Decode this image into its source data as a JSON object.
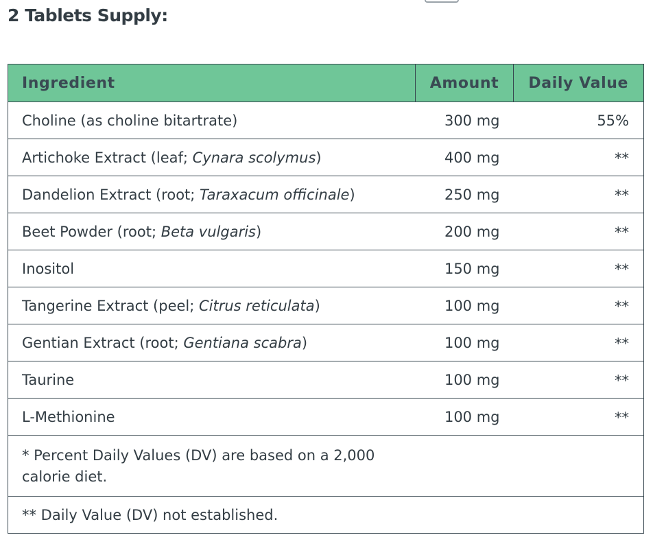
{
  "heading": "2 Tablets Supply:",
  "table": {
    "headers": {
      "ingredient": "Ingredient",
      "amount": "Amount",
      "daily_value": "Daily Value"
    },
    "rows": [
      {
        "name": "Choline (as choline bitartrate)",
        "latin": "",
        "suffix": "",
        "amount": "300 mg",
        "dv": "55%"
      },
      {
        "name": "Artichoke Extract (leaf; ",
        "latin": "Cynara scolymus",
        "suffix": ")",
        "amount": "400 mg",
        "dv": "**"
      },
      {
        "name": "Dandelion Extract (root; ",
        "latin": "Taraxacum officinale",
        "suffix": ")",
        "amount": "250 mg",
        "dv": "**"
      },
      {
        "name": "Beet Powder (root; ",
        "latin": "Beta vulgaris",
        "suffix": ")",
        "amount": "200 mg",
        "dv": "**"
      },
      {
        "name": "Inositol",
        "latin": "",
        "suffix": "",
        "amount": "150 mg",
        "dv": "**"
      },
      {
        "name": "Tangerine Extract (peel; ",
        "latin": "Citrus reticulata",
        "suffix": ")",
        "amount": "100 mg",
        "dv": "**"
      },
      {
        "name": "Gentian Extract (root; ",
        "latin": "Gentiana scabra",
        "suffix": ")",
        "amount": "100 mg",
        "dv": "**"
      },
      {
        "name": "Taurine",
        "latin": "",
        "suffix": "",
        "amount": "100 mg",
        "dv": "**"
      },
      {
        "name": "L-Methionine",
        "latin": "",
        "suffix": "",
        "amount": "100 mg",
        "dv": "**"
      }
    ],
    "footnotes": [
      "* Percent Daily Values (DV) are based on a 2,000 calorie diet.",
      "** Daily Value (DV) not established."
    ]
  },
  "colors": {
    "header_bg": "#6fc698",
    "text": "#333d44",
    "border": "#37464f"
  }
}
